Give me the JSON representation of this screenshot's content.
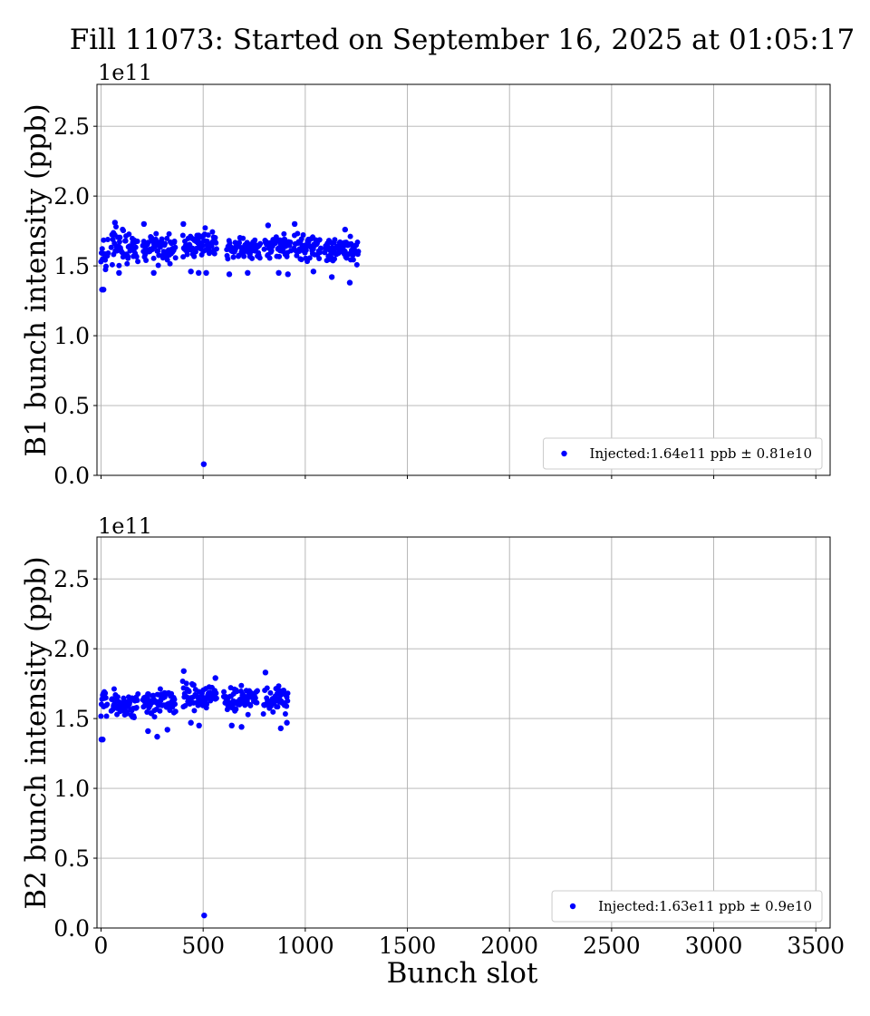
{
  "figure": {
    "suptitle": "Fill 11073: Started on September 16, 2025 at 01:05:17",
    "xlabel": "Bunch slot"
  },
  "chart_data": [
    {
      "type": "scatter",
      "ylabel": "B1 bunch intensity (ppb)",
      "offset_text": "1e11",
      "xlim": [
        -20,
        3570
      ],
      "ylim": [
        0,
        2.8
      ],
      "x_ticks": [
        0,
        500,
        1000,
        1500,
        2000,
        2500,
        3000,
        3500
      ],
      "x_tick_labels": [
        "0",
        "500",
        "1000",
        "1500",
        "2000",
        "2500",
        "3000",
        "3500"
      ],
      "x_tick_labels_visible": false,
      "y_ticks": [
        0.0,
        0.5,
        1.0,
        1.5,
        2.0,
        2.5
      ],
      "y_tick_labels": [
        "0.0",
        "0.5",
        "1.0",
        "1.5",
        "2.0",
        "2.5"
      ],
      "grid": true,
      "legend_placement": "lower-right",
      "color": "#0000ff",
      "series": [
        {
          "name": "Injected:1.64e11 ppb ± 0.81e10",
          "groups": [
            {
              "x_start": 0,
              "x_end": 35,
              "mean": 1.6,
              "spread": 0.09
            },
            {
              "x_start": 50,
              "x_end": 180,
              "mean": 1.64,
              "spread": 0.1
            },
            {
              "x_start": 205,
              "x_end": 365,
              "mean": 1.63,
              "spread": 0.09
            },
            {
              "x_start": 400,
              "x_end": 565,
              "mean": 1.66,
              "spread": 0.08
            },
            {
              "x_start": 615,
              "x_end": 780,
              "mean": 1.63,
              "spread": 0.08
            },
            {
              "x_start": 800,
              "x_end": 930,
              "mean": 1.64,
              "spread": 0.08
            },
            {
              "x_start": 945,
              "x_end": 1075,
              "mean": 1.63,
              "spread": 0.08
            },
            {
              "x_start": 1095,
              "x_end": 1260,
              "mean": 1.62,
              "spread": 0.08
            }
          ],
          "points": [
            {
              "x": 5,
              "y": 1.33
            },
            {
              "x": 12,
              "y": 1.33
            },
            {
              "x": 68,
              "y": 1.81
            },
            {
              "x": 210,
              "y": 1.8
            },
            {
              "x": 403,
              "y": 1.8
            },
            {
              "x": 948,
              "y": 1.8
            },
            {
              "x": 818,
              "y": 1.79
            },
            {
              "x": 1195,
              "y": 1.76
            },
            {
              "x": 1130,
              "y": 1.42
            },
            {
              "x": 1218,
              "y": 1.38
            },
            {
              "x": 88,
              "y": 1.45
            },
            {
              "x": 258,
              "y": 1.45
            },
            {
              "x": 440,
              "y": 1.46
            },
            {
              "x": 478,
              "y": 1.45
            },
            {
              "x": 515,
              "y": 1.45
            },
            {
              "x": 628,
              "y": 1.44
            },
            {
              "x": 718,
              "y": 1.45
            },
            {
              "x": 870,
              "y": 1.45
            },
            {
              "x": 915,
              "y": 1.44
            },
            {
              "x": 1040,
              "y": 1.46
            },
            {
              "x": 503,
              "y": 0.08
            }
          ]
        }
      ]
    },
    {
      "type": "scatter",
      "ylabel": "B2 bunch intensity (ppb)",
      "offset_text": "1e11",
      "xlim": [
        -20,
        3570
      ],
      "ylim": [
        0,
        2.8
      ],
      "x_ticks": [
        0,
        500,
        1000,
        1500,
        2000,
        2500,
        3000,
        3500
      ],
      "x_tick_labels": [
        "0",
        "500",
        "1000",
        "1500",
        "2000",
        "2500",
        "3000",
        "3500"
      ],
      "x_tick_labels_visible": true,
      "y_ticks": [
        0.0,
        0.5,
        1.0,
        1.5,
        2.0,
        2.5
      ],
      "y_tick_labels": [
        "0.0",
        "0.5",
        "1.0",
        "1.5",
        "2.0",
        "2.5"
      ],
      "grid": true,
      "legend_placement": "lower-right",
      "color": "#0000ff",
      "series": [
        {
          "name": "Injected:1.63e11 ppb ± 0.9e10",
          "groups": [
            {
              "x_start": 0,
              "x_end": 30,
              "mean": 1.6,
              "spread": 0.1
            },
            {
              "x_start": 50,
              "x_end": 180,
              "mean": 1.6,
              "spread": 0.08
            },
            {
              "x_start": 205,
              "x_end": 365,
              "mean": 1.62,
              "spread": 0.08
            },
            {
              "x_start": 400,
              "x_end": 565,
              "mean": 1.66,
              "spread": 0.08
            },
            {
              "x_start": 600,
              "x_end": 765,
              "mean": 1.64,
              "spread": 0.08
            },
            {
              "x_start": 795,
              "x_end": 915,
              "mean": 1.63,
              "spread": 0.09
            }
          ],
          "points": [
            {
              "x": 2,
              "y": 1.35
            },
            {
              "x": 8,
              "y": 1.35
            },
            {
              "x": 405,
              "y": 1.84
            },
            {
              "x": 805,
              "y": 1.83
            },
            {
              "x": 560,
              "y": 1.79
            },
            {
              "x": 230,
              "y": 1.41
            },
            {
              "x": 275,
              "y": 1.37
            },
            {
              "x": 325,
              "y": 1.42
            },
            {
              "x": 440,
              "y": 1.47
            },
            {
              "x": 480,
              "y": 1.45
            },
            {
              "x": 640,
              "y": 1.45
            },
            {
              "x": 688,
              "y": 1.44
            },
            {
              "x": 880,
              "y": 1.43
            },
            {
              "x": 910,
              "y": 1.47
            },
            {
              "x": 505,
              "y": 0.09
            }
          ]
        }
      ]
    }
  ]
}
